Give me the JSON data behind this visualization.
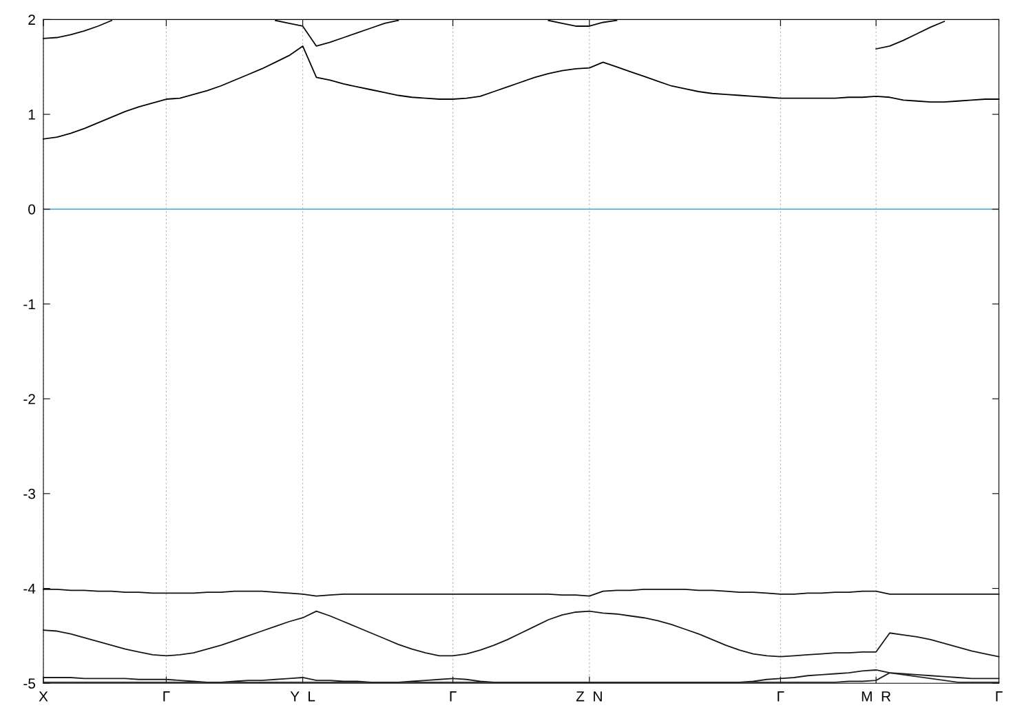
{
  "chart_data": {
    "type": "line",
    "ylim": [
      -5,
      2
    ],
    "categories": [
      "X",
      null,
      null,
      null,
      null,
      null,
      null,
      null,
      null,
      "Γ",
      null,
      null,
      null,
      null,
      null,
      null,
      null,
      null,
      null,
      "Y  L",
      null,
      null,
      null,
      null,
      null,
      null,
      null,
      null,
      null,
      null,
      "Γ",
      null,
      null,
      null,
      null,
      null,
      null,
      null,
      null,
      null,
      "Z  N",
      null,
      null,
      null,
      null,
      null,
      null,
      null,
      null,
      null,
      null,
      null,
      null,
      null,
      "Γ",
      null,
      null,
      null,
      null,
      null,
      null,
      "M  R",
      null,
      null,
      null,
      null,
      null,
      null,
      null,
      null,
      "Γ"
    ],
    "yticks": [
      -5,
      -4,
      -3,
      -2,
      -1,
      0,
      1,
      2
    ],
    "grid": "x",
    "legend": false,
    "marker": "none",
    "line_style": "solid",
    "ref_lines": [
      {
        "axis": "y",
        "value": 0,
        "color": "#3fa7d6"
      }
    ],
    "series": [
      {
        "color": "#000000",
        "values": [
          0.74,
          0.76,
          0.8,
          0.85,
          0.91,
          0.97,
          1.03,
          1.08,
          1.12,
          1.16,
          1.17,
          1.21,
          1.25,
          1.3,
          1.36,
          1.42,
          1.48,
          1.55,
          1.62,
          1.72,
          1.39,
          1.36,
          1.32,
          1.29,
          1.26,
          1.23,
          1.2,
          1.18,
          1.17,
          1.16,
          1.16,
          1.17,
          1.19,
          1.24,
          1.29,
          1.34,
          1.39,
          1.43,
          1.46,
          1.48,
          1.49,
          1.55,
          1.5,
          1.45,
          1.4,
          1.35,
          1.3,
          1.27,
          1.24,
          1.22,
          1.21,
          1.2,
          1.19,
          1.18,
          1.17,
          1.17,
          1.17,
          1.17,
          1.17,
          1.18,
          1.18,
          1.19,
          1.18,
          1.15,
          1.14,
          1.13,
          1.13,
          1.14,
          1.15,
          1.16,
          1.16
        ]
      },
      {
        "color": "#070707",
        "values": [
          1.8,
          1.81,
          1.84,
          1.88,
          1.93,
          1.99,
          null,
          null,
          null,
          null,
          null,
          null,
          null,
          null,
          null,
          null,
          null,
          1.99,
          1.96,
          1.93,
          1.72,
          1.76,
          1.81,
          1.86,
          1.91,
          1.96,
          1.99,
          null,
          null,
          null,
          null,
          null,
          null,
          null,
          null,
          null,
          null,
          1.99,
          1.96,
          1.93,
          1.93,
          1.97,
          1.99,
          null,
          null,
          null,
          null,
          null,
          null,
          null,
          null,
          null,
          null,
          null,
          null,
          null,
          null,
          null,
          null,
          null,
          null,
          1.69,
          1.72,
          1.78,
          1.85,
          1.92,
          1.98,
          null,
          null,
          null,
          null
        ]
      },
      {
        "color": "#0e0e0e",
        "values": [
          -4.01,
          -4.01,
          -4.02,
          -4.02,
          -4.03,
          -4.03,
          -4.04,
          -4.04,
          -4.05,
          -4.05,
          -4.05,
          -4.05,
          -4.04,
          -4.04,
          -4.03,
          -4.03,
          -4.03,
          -4.04,
          -4.05,
          -4.06,
          -4.08,
          -4.07,
          -4.06,
          -4.06,
          -4.06,
          -4.06,
          -4.06,
          -4.06,
          -4.06,
          -4.06,
          -4.06,
          -4.06,
          -4.06,
          -4.06,
          -4.06,
          -4.06,
          -4.06,
          -4.06,
          -4.07,
          -4.07,
          -4.08,
          -4.03,
          -4.02,
          -4.02,
          -4.01,
          -4.01,
          -4.01,
          -4.01,
          -4.02,
          -4.02,
          -4.03,
          -4.04,
          -4.04,
          -4.05,
          -4.06,
          -4.06,
          -4.05,
          -4.05,
          -4.04,
          -4.04,
          -4.03,
          -4.03,
          -4.06,
          -4.06,
          -4.06,
          -4.06,
          -4.06,
          -4.06,
          -4.06,
          -4.06,
          -4.06
        ]
      },
      {
        "color": "#151515",
        "values": [
          -4.44,
          -4.45,
          -4.48,
          -4.52,
          -4.56,
          -4.6,
          -4.64,
          -4.67,
          -4.7,
          -4.71,
          -4.7,
          -4.68,
          -4.64,
          -4.6,
          -4.55,
          -4.5,
          -4.45,
          -4.4,
          -4.35,
          -4.31,
          -4.24,
          -4.29,
          -4.35,
          -4.41,
          -4.47,
          -4.53,
          -4.59,
          -4.64,
          -4.68,
          -4.71,
          -4.71,
          -4.69,
          -4.65,
          -4.6,
          -4.54,
          -4.47,
          -4.4,
          -4.33,
          -4.28,
          -4.25,
          -4.24,
          -4.26,
          -4.27,
          -4.29,
          -4.31,
          -4.34,
          -4.38,
          -4.43,
          -4.48,
          -4.54,
          -4.6,
          -4.65,
          -4.69,
          -4.71,
          -4.72,
          -4.71,
          -4.7,
          -4.69,
          -4.68,
          -4.68,
          -4.67,
          -4.67,
          -4.47,
          -4.49,
          -4.51,
          -4.54,
          -4.58,
          -4.62,
          -4.66,
          -4.69,
          -4.72
        ]
      },
      {
        "color": "#1c1c1c",
        "values": [
          -4.94,
          -4.94,
          -4.94,
          -4.95,
          -4.95,
          -4.95,
          -4.95,
          -4.96,
          -4.96,
          -4.96,
          -4.97,
          -4.98,
          -4.99,
          -4.99,
          -4.98,
          -4.97,
          -4.97,
          -4.96,
          -4.95,
          -4.94,
          -4.97,
          -4.97,
          -4.98,
          -4.98,
          -4.99,
          -4.99,
          -4.99,
          -4.98,
          -4.97,
          -4.96,
          -4.95,
          -4.96,
          -4.98,
          -4.99,
          -4.99,
          -4.99,
          -4.99,
          -4.99,
          -4.99,
          -4.99,
          -4.99,
          -4.99,
          -4.99,
          -4.99,
          -4.99,
          -4.99,
          -4.99,
          -4.99,
          -4.99,
          -4.99,
          -4.99,
          -4.99,
          -4.98,
          -4.96,
          -4.95,
          -4.94,
          -4.92,
          -4.91,
          -4.9,
          -4.89,
          -4.87,
          -4.86,
          -4.89,
          -4.9,
          -4.91,
          -4.92,
          -4.93,
          -4.94,
          -4.95,
          -4.95,
          -4.95
        ]
      },
      {
        "color": "#232323",
        "values": [
          -4.99,
          -4.99,
          -4.99,
          -4.99,
          -4.99,
          -4.99,
          -4.99,
          -4.99,
          -4.99,
          -4.99,
          -4.99,
          -4.99,
          -4.99,
          -4.99,
          -4.99,
          -4.99,
          -4.99,
          -4.99,
          -4.99,
          -4.99,
          -4.99,
          -4.99,
          -4.99,
          -4.99,
          -4.99,
          -4.99,
          -4.99,
          -4.99,
          -4.99,
          -4.99,
          -4.99,
          -4.99,
          -4.99,
          -4.99,
          -4.99,
          -4.99,
          -4.99,
          -4.99,
          -4.99,
          -4.99,
          -4.99,
          -4.99,
          -4.99,
          -4.99,
          -4.99,
          -4.99,
          -4.99,
          -4.99,
          -4.99,
          -4.99,
          -4.99,
          -4.99,
          -4.99,
          -4.99,
          -4.99,
          -4.99,
          -4.99,
          -4.99,
          -4.99,
          -4.98,
          -4.98,
          -4.97,
          -4.89,
          -4.91,
          -4.93,
          -4.95,
          -4.97,
          -4.99,
          -4.99,
          -4.99,
          -4.99
        ]
      }
    ]
  }
}
